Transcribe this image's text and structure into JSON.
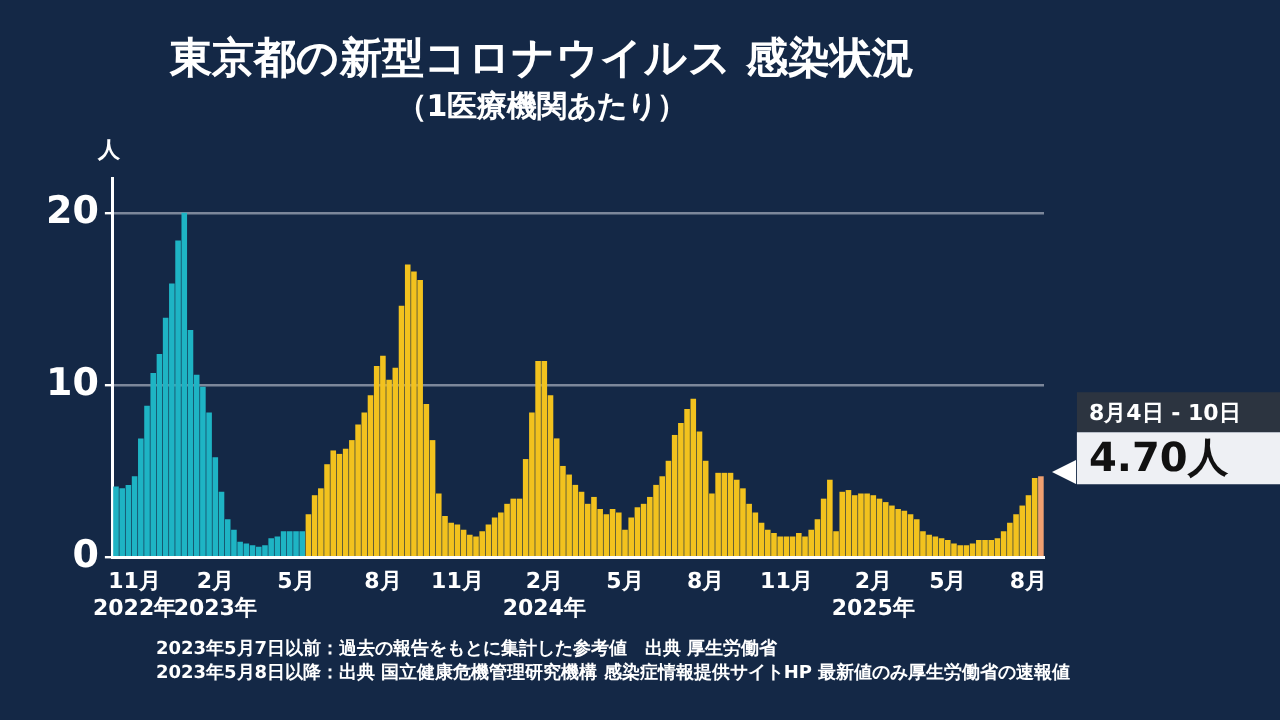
{
  "chart_data": {
    "type": "bar",
    "title": "東京都の新型コロナウイルス 感染状況",
    "subtitle": "（1医療機関あたり）",
    "ylabel": "人",
    "categories": [
      null,
      null,
      null,
      "11月\n2022年",
      null,
      null,
      null,
      null,
      null,
      null,
      null,
      null,
      null,
      null,
      null,
      null,
      "2月\n2023年",
      null,
      null,
      null,
      null,
      null,
      null,
      null,
      null,
      null,
      null,
      null,
      null,
      "5月",
      null,
      null,
      null,
      null,
      null,
      null,
      null,
      null,
      null,
      null,
      null,
      null,
      null,
      "8月",
      null,
      null,
      null,
      null,
      null,
      null,
      null,
      null,
      null,
      null,
      null,
      "11月",
      null,
      null,
      null,
      null,
      null,
      null,
      null,
      null,
      null,
      null,
      null,
      null,
      null,
      "2月\n2024年",
      null,
      null,
      null,
      null,
      null,
      null,
      null,
      null,
      null,
      null,
      null,
      null,
      "5月",
      null,
      null,
      null,
      null,
      null,
      null,
      null,
      null,
      null,
      null,
      null,
      null,
      "8月",
      null,
      null,
      null,
      null,
      null,
      null,
      null,
      null,
      null,
      null,
      null,
      null,
      "11月",
      null,
      null,
      null,
      null,
      null,
      null,
      null,
      null,
      null,
      null,
      null,
      null,
      null,
      "2月\n2025年",
      null,
      null,
      null,
      null,
      null,
      null,
      null,
      null,
      null,
      null,
      null,
      "5月",
      null,
      null,
      null,
      null,
      null,
      null,
      null,
      null,
      null,
      null,
      null,
      null,
      "8月",
      null,
      null
    ],
    "values": [
      4.1,
      4.0,
      4.2,
      4.7,
      6.9,
      8.8,
      10.7,
      11.8,
      13.9,
      15.9,
      18.4,
      20.0,
      13.2,
      10.6,
      9.9,
      8.4,
      5.8,
      3.8,
      2.2,
      1.6,
      0.9,
      0.8,
      0.7,
      0.6,
      0.7,
      1.1,
      1.2,
      1.5,
      1.5,
      1.5,
      1.5,
      2.5,
      3.6,
      4.0,
      5.4,
      6.2,
      6.0,
      6.3,
      6.8,
      7.7,
      8.4,
      9.4,
      11.1,
      11.7,
      10.3,
      11.0,
      14.6,
      17.0,
      16.6,
      16.1,
      8.9,
      6.8,
      3.7,
      2.4,
      2.0,
      1.9,
      1.6,
      1.3,
      1.2,
      1.5,
      1.9,
      2.3,
      2.6,
      3.1,
      3.4,
      3.4,
      5.7,
      8.4,
      11.4,
      11.4,
      9.4,
      6.9,
      5.3,
      4.8,
      4.2,
      3.8,
      3.1,
      3.5,
      2.8,
      2.5,
      2.8,
      2.6,
      1.6,
      2.3,
      2.9,
      3.1,
      3.5,
      4.2,
      4.7,
      5.6,
      7.1,
      7.8,
      8.6,
      9.2,
      7.3,
      5.6,
      3.7,
      4.9,
      4.9,
      4.9,
      4.5,
      4.0,
      3.1,
      2.6,
      2.0,
      1.6,
      1.4,
      1.2,
      1.2,
      1.2,
      1.4,
      1.2,
      1.6,
      2.2,
      3.4,
      4.5,
      1.5,
      3.8,
      3.9,
      3.6,
      3.7,
      3.7,
      3.6,
      3.4,
      3.2,
      3.0,
      2.8,
      2.7,
      2.5,
      2.2,
      1.5,
      1.3,
      1.2,
      1.1,
      1.0,
      0.8,
      0.7,
      0.7,
      0.8,
      1.0,
      1.0,
      1.0,
      1.1,
      1.5,
      2.0,
      2.5,
      3.0,
      3.6,
      4.6,
      4.7
    ],
    "colors": [
      "#1eb4c4",
      "#1eb4c4",
      "#1eb4c4",
      "#1eb4c4",
      "#1eb4c4",
      "#1eb4c4",
      "#1eb4c4",
      "#1eb4c4",
      "#1eb4c4",
      "#1eb4c4",
      "#1eb4c4",
      "#1eb4c4",
      "#1eb4c4",
      "#1eb4c4",
      "#1eb4c4",
      "#1eb4c4",
      "#1eb4c4",
      "#1eb4c4",
      "#1eb4c4",
      "#1eb4c4",
      "#1eb4c4",
      "#1eb4c4",
      "#1eb4c4",
      "#1eb4c4",
      "#1eb4c4",
      "#1eb4c4",
      "#1eb4c4",
      "#1eb4c4",
      "#1eb4c4",
      "#1eb4c4",
      "#1eb4c4",
      "#f2c21e",
      "#f2c21e",
      "#f2c21e",
      "#f2c21e",
      "#f2c21e",
      "#f2c21e",
      "#f2c21e",
      "#f2c21e",
      "#f2c21e",
      "#f2c21e",
      "#f2c21e",
      "#f2c21e",
      "#f2c21e",
      "#f2c21e",
      "#f2c21e",
      "#f2c21e",
      "#f2c21e",
      "#f2c21e",
      "#f2c21e",
      "#f2c21e",
      "#f2c21e",
      "#f2c21e",
      "#f2c21e",
      "#f2c21e",
      "#f2c21e",
      "#f2c21e",
      "#f2c21e",
      "#f2c21e",
      "#f2c21e",
      "#f2c21e",
      "#f2c21e",
      "#f2c21e",
      "#f2c21e",
      "#f2c21e",
      "#f2c21e",
      "#f2c21e",
      "#f2c21e",
      "#f2c21e",
      "#f2c21e",
      "#f2c21e",
      "#f2c21e",
      "#f2c21e",
      "#f2c21e",
      "#f2c21e",
      "#f2c21e",
      "#f2c21e",
      "#f2c21e",
      "#f2c21e",
      "#f2c21e",
      "#f2c21e",
      "#f2c21e",
      "#f2c21e",
      "#f2c21e",
      "#f2c21e",
      "#f2c21e",
      "#f2c21e",
      "#f2c21e",
      "#f2c21e",
      "#f2c21e",
      "#f2c21e",
      "#f2c21e",
      "#f2c21e",
      "#f2c21e",
      "#f2c21e",
      "#f2c21e",
      "#f2c21e",
      "#f2c21e",
      "#f2c21e",
      "#f2c21e",
      "#f2c21e",
      "#f2c21e",
      "#f2c21e",
      "#f2c21e",
      "#f2c21e",
      "#f2c21e",
      "#f2c21e",
      "#f2c21e",
      "#f2c21e",
      "#f2c21e",
      "#f2c21e",
      "#f2c21e",
      "#f2c21e",
      "#f2c21e",
      "#f2c21e",
      "#f2c21e",
      "#f2c21e",
      "#f2c21e",
      "#f2c21e",
      "#f2c21e",
      "#f2c21e",
      "#f2c21e",
      "#f2c21e",
      "#f2c21e",
      "#f2c21e",
      "#f2c21e",
      "#f2c21e",
      "#f2c21e",
      "#f2c21e",
      "#f2c21e",
      "#f2c21e",
      "#f2c21e",
      "#f2c21e",
      "#f2c21e",
      "#f2c21e",
      "#f2c21e",
      "#f2c21e",
      "#f2c21e",
      "#f2c21e",
      "#f2c21e",
      "#f2c21e",
      "#f2c21e",
      "#f2c21e",
      "#f2c21e",
      "#f2c21e",
      "#f2c21e",
      "#f2c21e",
      "#f2c21e",
      "#f2c21e",
      "#f0a070"
    ],
    "ylim": [
      0,
      22
    ],
    "yticks": [
      0,
      10,
      20
    ],
    "grid": "y",
    "legend": false,
    "annotations": [
      "2023年5月7日以前：過去の報告をもとに集計した参考値　出典 厚生労働省",
      "2023年5月8日以降：出典 国立健康危機管理研究機構 感染症情報提供サイトHP 最新値のみ厚生労働省の速報値",
      "8月4日 - 10日",
      "4.70人"
    ]
  }
}
